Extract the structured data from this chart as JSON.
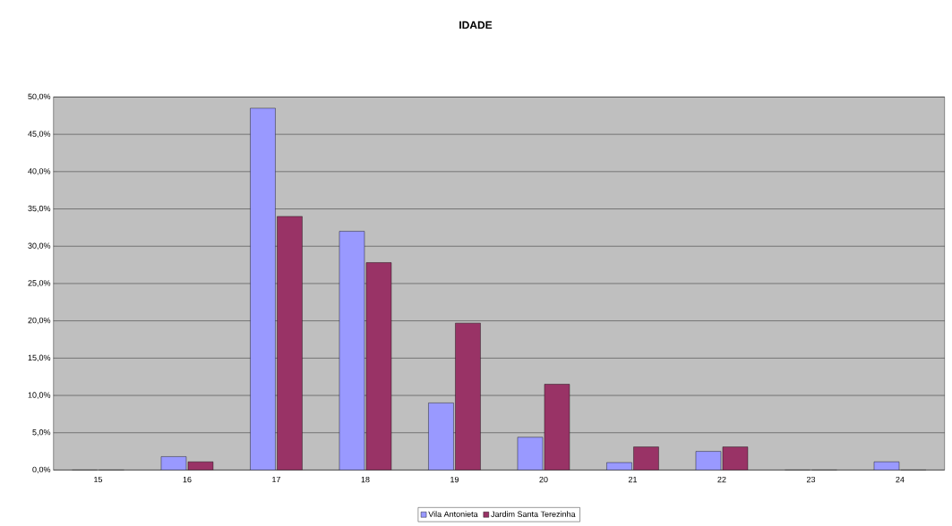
{
  "chart_data": {
    "type": "bar",
    "title": "IDADE",
    "categories": [
      "15",
      "16",
      "17",
      "18",
      "19",
      "20",
      "21",
      "22",
      "23",
      "24"
    ],
    "series": [
      {
        "name": "Vila Antonieta",
        "color": "#9999ff",
        "values": [
          0,
          1.8,
          48.5,
          32.0,
          9.0,
          4.4,
          1.0,
          2.5,
          0,
          1.1
        ]
      },
      {
        "name": "Jardim Santa Terezinha",
        "color": "#993366",
        "values": [
          0,
          1.1,
          34.0,
          27.8,
          19.7,
          11.5,
          3.1,
          3.1,
          0,
          0
        ]
      }
    ],
    "ylim": [
      0,
      50
    ],
    "yticks": [
      {
        "value": 0,
        "label": "0,0%"
      },
      {
        "value": 5,
        "label": "5,0%"
      },
      {
        "value": 10,
        "label": "10,0%"
      },
      {
        "value": 15,
        "label": "15,0%"
      },
      {
        "value": 20,
        "label": "20,0%"
      },
      {
        "value": 25,
        "label": "25,0%"
      },
      {
        "value": 30,
        "label": "30,0%"
      },
      {
        "value": 35,
        "label": "35,0%"
      },
      {
        "value": 40,
        "label": "40,0%"
      },
      {
        "value": 45,
        "label": "45,0%"
      },
      {
        "value": 50,
        "label": "50,0%"
      }
    ],
    "grid": "y",
    "legend": "bottom"
  }
}
